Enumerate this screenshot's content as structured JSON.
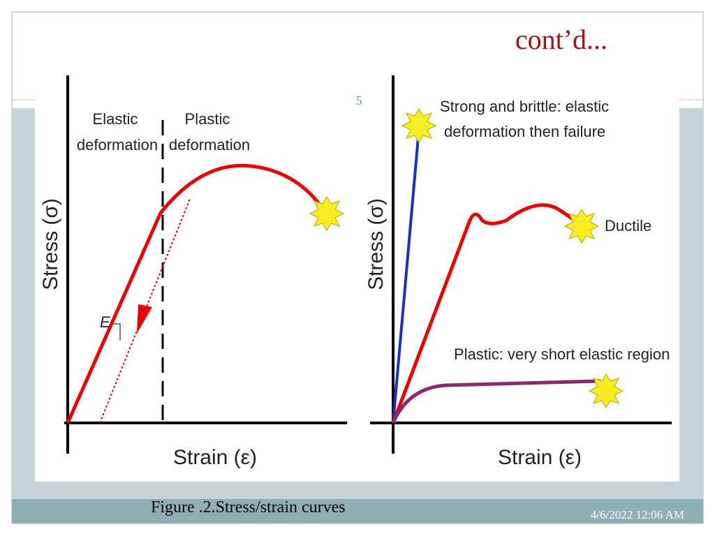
{
  "header": {
    "title": "cont’d...",
    "page_number": "5"
  },
  "figure": {
    "left": {
      "y_axis_label": "Stress (σ)",
      "x_axis_label": "Strain (ε)",
      "elastic_label": [
        "Elastic",
        "deformation"
      ],
      "plastic_label": [
        "Plastic",
        "deformation"
      ],
      "modulus_label": "E"
    },
    "right": {
      "y_axis_label": "Stress (σ)",
      "x_axis_label": "Strain (ε)",
      "brittle_label": [
        "Strong and brittle: elastic",
        "deformation then failure"
      ],
      "ductile_label": "Ductile",
      "plastic_label": "Plastic: very short elastic region"
    },
    "caption": "Figure .2.Stress/strain curves"
  },
  "footer": {
    "date": "4/6/2022 12:06 AM"
  }
}
